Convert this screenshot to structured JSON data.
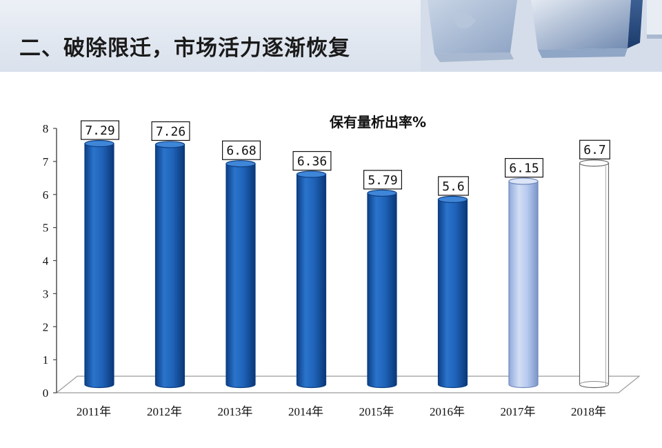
{
  "slide": {
    "title": "二、破除限迁，市场活力逐渐恢复"
  },
  "colors": {
    "actual_bar": "#1f63b8",
    "actual_bar_dark": "#0c3c80",
    "estimate_bar": "#b5c8ee",
    "forecast_bar": "#ffffff",
    "header_band": "#dfe6ef"
  },
  "chart_data": {
    "type": "bar",
    "title": "保有量析出率%",
    "categories": [
      "2011年",
      "2012年",
      "2013年",
      "2014年",
      "2015年",
      "2016年",
      "2017年",
      "2018年"
    ],
    "values": [
      7.29,
      7.26,
      6.68,
      6.36,
      5.79,
      5.6,
      6.15,
      6.7
    ],
    "data_labels": [
      "7.29",
      "7.26",
      "6.68",
      "6.36",
      "5.79",
      "5.6",
      "6.15",
      "6.7"
    ],
    "bar_styles": [
      "actual",
      "actual",
      "actual",
      "actual",
      "actual",
      "actual",
      "estimate",
      "forecast"
    ],
    "ylim": [
      0,
      8
    ],
    "yticks": [
      0,
      1,
      2,
      3,
      4,
      5,
      6,
      7,
      8
    ],
    "xlabel": "",
    "ylabel": "",
    "grid": false,
    "bar_shape": "cylinder"
  }
}
